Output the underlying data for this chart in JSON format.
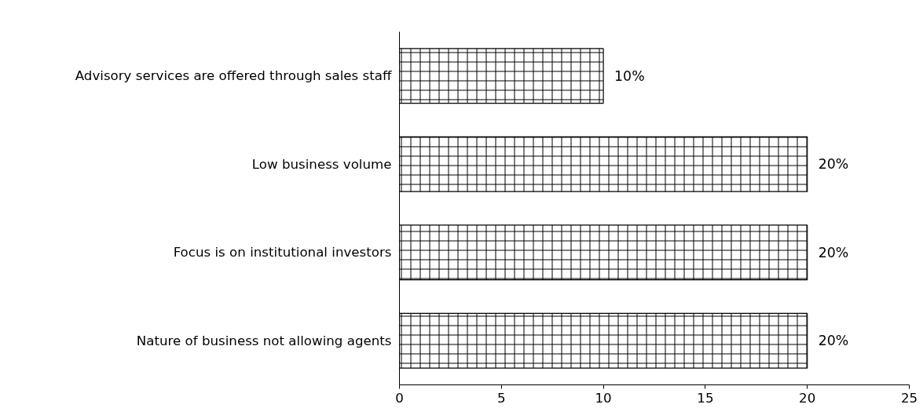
{
  "chart_data": {
    "type": "bar",
    "orientation": "horizontal",
    "categories": [
      "Advisory services are offered through sales staff",
      "Low business volume",
      "Focus is on institutional investors",
      "Nature of business not allowing agents"
    ],
    "values": [
      10,
      20,
      20,
      20
    ],
    "value_labels": [
      "10%",
      "20%",
      "20%",
      "20%"
    ],
    "color": "#ffffff",
    "xlim": [
      0,
      25
    ],
    "xticks": [
      0,
      5,
      10,
      15,
      20,
      25
    ],
    "grid": false
  }
}
